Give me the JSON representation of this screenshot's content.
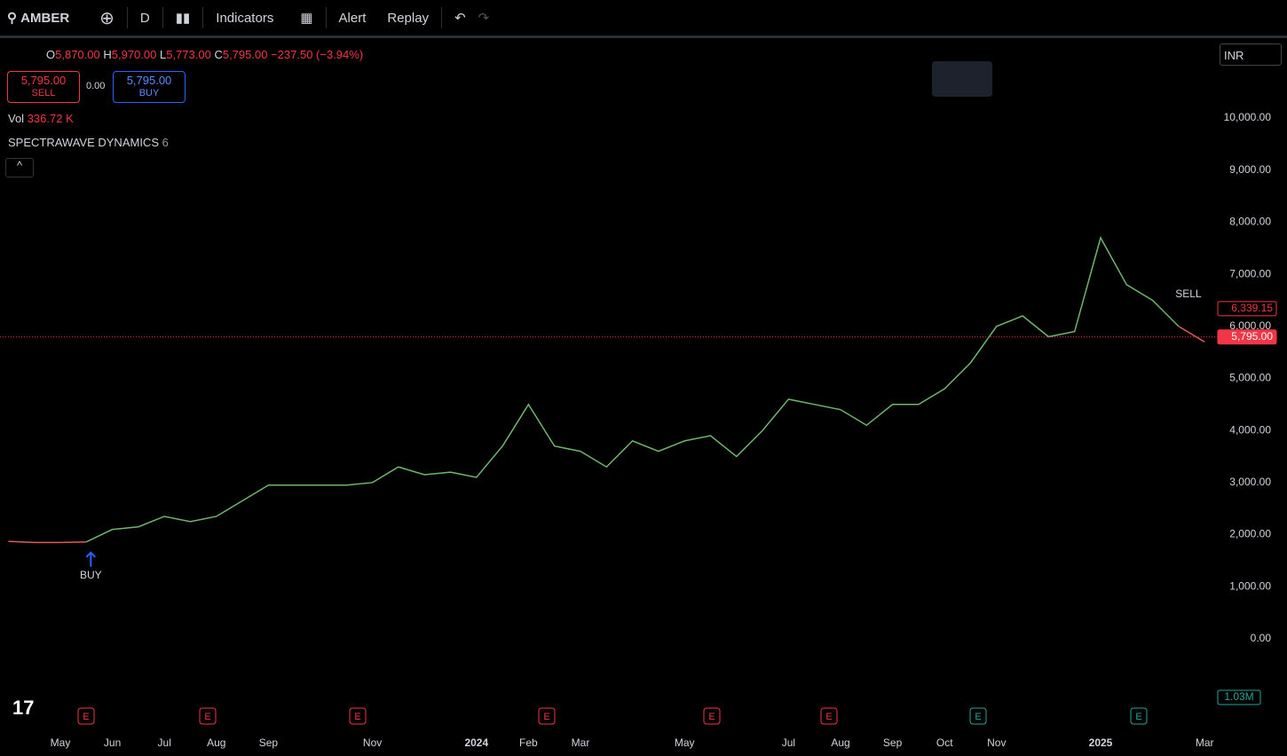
{
  "toolbar": {
    "symbol": "AMBER",
    "interval": "D",
    "indicators": "Indicators",
    "alert": "Alert",
    "replay": "Replay"
  },
  "ohlc": {
    "o": "O",
    "open": "5,870.00",
    "h": "H",
    "high": "5,970.00",
    "l": "L",
    "low": "5,773.00",
    "c": "C",
    "close": "5,795.00",
    "change": "−237.50 (−3.94%)"
  },
  "trade": {
    "sell_price": "5,795.00",
    "sell": "SELL",
    "spread": "0.00",
    "buy_price": "5,795.00",
    "buy": "BUY"
  },
  "volume": {
    "label": "Vol",
    "value": "336.72 K",
    "axis_label": "1.03M"
  },
  "indicator": {
    "name": "SPECTRAWAVE DYNAMICS",
    "param": "6"
  },
  "currency": "INR",
  "earnings_label": "E",
  "chart_data": {
    "type": "line",
    "categories": [
      null,
      null,
      "May",
      null,
      "Jun",
      null,
      "Jul",
      null,
      "Aug",
      null,
      "Sep",
      null,
      null,
      null,
      "Nov",
      null,
      null,
      null,
      "2024",
      null,
      "Feb",
      null,
      "Mar",
      null,
      null,
      null,
      "May",
      null,
      null,
      null,
      "Jul",
      null,
      "Aug",
      null,
      "Sep",
      null,
      "Oct",
      null,
      "Nov",
      null,
      null,
      null,
      "2025",
      null,
      null,
      null,
      "Mar"
    ],
    "values": [
      1870,
      1850,
      1850,
      1860,
      2100,
      2150,
      2350,
      2250,
      2350,
      2650,
      2950,
      2950,
      2950,
      2950,
      3000,
      3300,
      3150,
      3200,
      3100,
      3700,
      4500,
      3700,
      3600,
      3300,
      3800,
      3600,
      3800,
      3900,
      3500,
      4000,
      4600,
      4500,
      4400,
      4100,
      4500,
      4500,
      4800,
      5300,
      6000,
      6200,
      5800,
      5900,
      7700,
      6800,
      6500,
      6000,
      5700
    ],
    "color": "#6fb56d",
    "signal_color": "#e05c5c",
    "signals": {
      "buy": "BUY",
      "sell": "SELL"
    },
    "price_labels": [
      {
        "value": 6339.15,
        "label": "6,339.15"
      },
      {
        "value": 5795,
        "label": "5,795.00"
      }
    ],
    "ylim": [
      -1740,
      11500
    ],
    "yticks": [
      {
        "value": 0,
        "label": "0.00"
      },
      {
        "value": 1000,
        "label": "1,000.00"
      },
      {
        "value": 2000,
        "label": "2,000.00"
      },
      {
        "value": 3000,
        "label": "3,000.00"
      },
      {
        "value": 4000,
        "label": "4,000.00"
      },
      {
        "value": 5000,
        "label": "5,000.00"
      },
      {
        "value": 6000,
        "label": "6,000.00"
      },
      {
        "value": 7000,
        "label": "7,000.00"
      },
      {
        "value": 8000,
        "label": "8,000.00"
      },
      {
        "value": 9000,
        "label": "9,000.00"
      },
      {
        "value": 10000,
        "label": "10,000.00"
      }
    ]
  }
}
